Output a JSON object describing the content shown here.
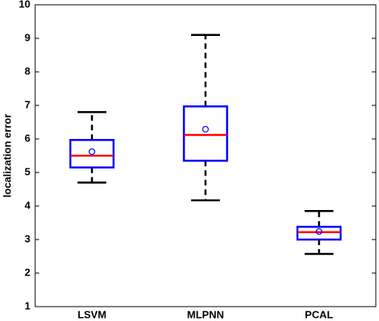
{
  "chart_data": {
    "type": "box",
    "y_label": "localization error",
    "categories": [
      "LSVM",
      "MLPNN",
      "PCAL"
    ],
    "whisker_low": [
      4.7,
      4.17,
      2.57
    ],
    "q1": [
      5.15,
      5.35,
      3.0
    ],
    "median": [
      5.5,
      6.12,
      3.22
    ],
    "q3": [
      5.97,
      6.97,
      3.38
    ],
    "whisker_high": [
      6.8,
      9.1,
      3.85
    ],
    "mean": [
      5.62,
      6.29,
      3.24
    ],
    "box_color": "#0000ff",
    "median_color": "#ff0000",
    "whisker_color": "#000000",
    "mean_color": "#0000ff",
    "ylim": [
      1,
      10
    ],
    "yticks": [
      1,
      2,
      3,
      4,
      5,
      6,
      7,
      8,
      9,
      10
    ]
  }
}
